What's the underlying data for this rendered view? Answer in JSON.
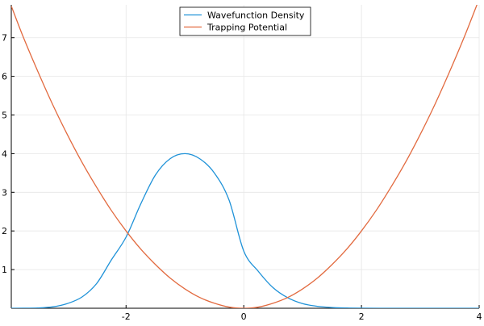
{
  "chart_data": {
    "type": "line",
    "title": "",
    "xlabel": "",
    "ylabel": "",
    "xlim": [
      -3.95,
      4.0
    ],
    "ylim": [
      0.0,
      7.85
    ],
    "x_ticks": [
      -2,
      0,
      2,
      4
    ],
    "x_tick_labels": [
      "-2",
      "0",
      "2",
      "4"
    ],
    "y_ticks": [
      1,
      2,
      3,
      4,
      5,
      6,
      7
    ],
    "y_tick_labels": [
      "1",
      "2",
      "3",
      "4",
      "5",
      "6",
      "7"
    ],
    "grid": true,
    "legend_position": "top-center",
    "series": [
      {
        "name": "Wavefunction Density",
        "color": "#1f92d8",
        "points": [
          [
            -3.95,
            0.0
          ],
          [
            -3.75,
            0.001
          ],
          [
            -3.5,
            0.008
          ],
          [
            -3.25,
            0.035
          ],
          [
            -3.0,
            0.12
          ],
          [
            -2.75,
            0.29
          ],
          [
            -2.5,
            0.64
          ],
          [
            -2.25,
            1.25
          ],
          [
            -2.0,
            1.84
          ],
          [
            -1.75,
            2.7
          ],
          [
            -1.5,
            3.45
          ],
          [
            -1.25,
            3.87
          ],
          [
            -1.0,
            4.0
          ],
          [
            -0.75,
            3.87
          ],
          [
            -0.5,
            3.5
          ],
          [
            -0.25,
            2.8
          ],
          [
            0.0,
            1.48
          ],
          [
            0.25,
            0.95
          ],
          [
            0.5,
            0.53
          ],
          [
            0.75,
            0.27
          ],
          [
            1.0,
            0.12
          ],
          [
            1.25,
            0.05
          ],
          [
            1.5,
            0.018
          ],
          [
            1.75,
            0.006
          ],
          [
            2.0,
            0.002
          ],
          [
            2.5,
            0.0
          ],
          [
            3.0,
            0.0
          ],
          [
            3.5,
            0.0
          ],
          [
            4.0,
            0.0
          ]
        ]
      },
      {
        "name": "Trapping Potential",
        "color": "#e26a3f",
        "points": [
          [
            -3.95,
            7.82
          ],
          [
            -3.75,
            7.03
          ],
          [
            -3.5,
            6.13
          ],
          [
            -3.25,
            5.28
          ],
          [
            -3.0,
            4.5
          ],
          [
            -2.75,
            3.78
          ],
          [
            -2.5,
            3.13
          ],
          [
            -2.25,
            2.53
          ],
          [
            -2.0,
            2.0
          ],
          [
            -1.75,
            1.53
          ],
          [
            -1.5,
            1.13
          ],
          [
            -1.25,
            0.78
          ],
          [
            -1.0,
            0.5
          ],
          [
            -0.75,
            0.28
          ],
          [
            -0.5,
            0.13
          ],
          [
            -0.25,
            0.03
          ],
          [
            0.0,
            0.0
          ],
          [
            0.25,
            0.03
          ],
          [
            0.5,
            0.13
          ],
          [
            0.75,
            0.28
          ],
          [
            1.0,
            0.5
          ],
          [
            1.25,
            0.78
          ],
          [
            1.5,
            1.13
          ],
          [
            1.75,
            1.53
          ],
          [
            2.0,
            2.0
          ],
          [
            2.25,
            2.53
          ],
          [
            2.5,
            3.13
          ],
          [
            2.75,
            3.78
          ],
          [
            3.0,
            4.5
          ],
          [
            3.25,
            5.28
          ],
          [
            3.5,
            6.13
          ],
          [
            3.75,
            7.03
          ],
          [
            4.0,
            8.0
          ]
        ]
      }
    ]
  }
}
